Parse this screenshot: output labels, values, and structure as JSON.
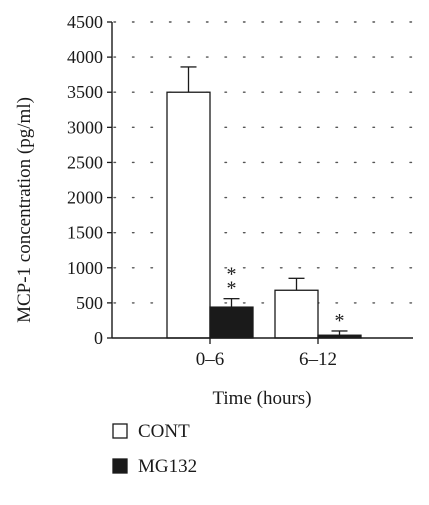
{
  "chart_data": {
    "type": "bar",
    "title": "",
    "xlabel": "Time (hours)",
    "ylabel": "MCP-1 concentration (pg/ml)",
    "categories": [
      "0–6",
      "6–12"
    ],
    "ylim": [
      0,
      4500
    ],
    "yticks": [
      0,
      500,
      1000,
      1500,
      2000,
      2500,
      3000,
      3500,
      4000,
      4500
    ],
    "grid": "dotted horizontal",
    "legend_position": "bottom-left",
    "series": [
      {
        "name": "CONT",
        "values": [
          3500,
          680
        ],
        "errors": [
          360,
          170
        ],
        "color": "#ffffff",
        "annotations": [
          "",
          ""
        ]
      },
      {
        "name": "MG132",
        "values": [
          440,
          40
        ],
        "errors": [
          120,
          60
        ],
        "color": "#1a1a1a",
        "annotations": [
          "**",
          "*"
        ]
      }
    ]
  }
}
